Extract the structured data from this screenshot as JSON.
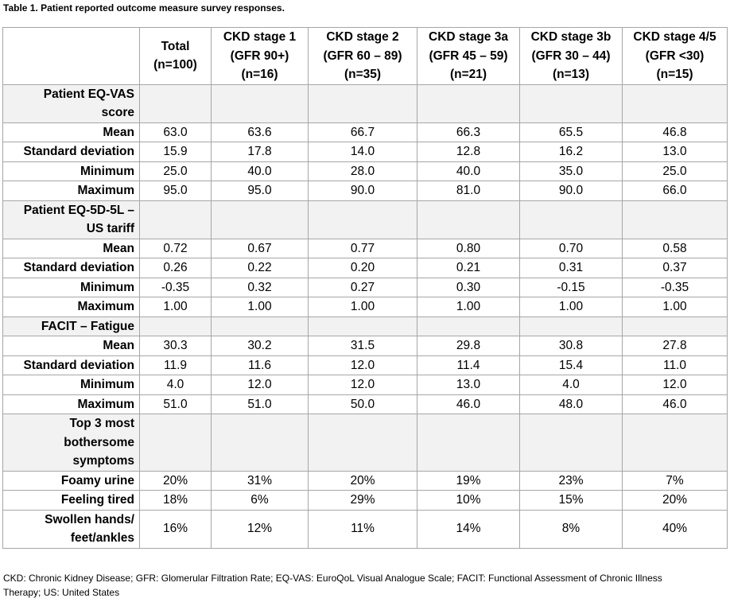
{
  "caption": "Table 1. Patient reported outcome measure survey responses.",
  "columns": [
    [
      "Total",
      "(n=100)"
    ],
    [
      "CKD stage 1",
      "(GFR 90+)",
      "(n=16)"
    ],
    [
      "CKD stage 2",
      "(GFR 60 – 89)",
      "(n=35)"
    ],
    [
      "CKD stage 3a",
      "(GFR 45 – 59)",
      "(n=21)"
    ],
    [
      "CKD stage 3b",
      "(GFR 30 – 44)",
      "(n=13)"
    ],
    [
      "CKD stage 4/5",
      "(GFR <30)",
      "(n=15)"
    ]
  ],
  "rows": [
    {
      "type": "section",
      "lines": [
        "Patient EQ-VAS",
        "score"
      ]
    },
    {
      "type": "data",
      "lines": [
        "Mean"
      ],
      "values": [
        "63.0",
        "63.6",
        "66.7",
        "66.3",
        "65.5",
        "46.8"
      ]
    },
    {
      "type": "data",
      "lines": [
        "Standard deviation"
      ],
      "values": [
        "15.9",
        "17.8",
        "14.0",
        "12.8",
        "16.2",
        "13.0"
      ]
    },
    {
      "type": "data",
      "lines": [
        "Minimum"
      ],
      "values": [
        "25.0",
        "40.0",
        "28.0",
        "40.0",
        "35.0",
        "25.0"
      ]
    },
    {
      "type": "data",
      "lines": [
        "Maximum"
      ],
      "values": [
        "95.0",
        "95.0",
        "90.0",
        "81.0",
        "90.0",
        "66.0"
      ]
    },
    {
      "type": "section",
      "lines": [
        "Patient EQ-5D-5L –",
        "US tariff"
      ]
    },
    {
      "type": "data",
      "lines": [
        "Mean"
      ],
      "values": [
        "0.72",
        "0.67",
        "0.77",
        "0.80",
        "0.70",
        "0.58"
      ]
    },
    {
      "type": "data",
      "lines": [
        "Standard deviation"
      ],
      "values": [
        "0.26",
        "0.22",
        "0.20",
        "0.21",
        "0.31",
        "0.37"
      ]
    },
    {
      "type": "data",
      "lines": [
        "Minimum"
      ],
      "values": [
        "-0.35",
        "0.32",
        "0.27",
        "0.30",
        "-0.15",
        "-0.35"
      ]
    },
    {
      "type": "data",
      "lines": [
        "Maximum"
      ],
      "values": [
        "1.00",
        "1.00",
        "1.00",
        "1.00",
        "1.00",
        "1.00"
      ]
    },
    {
      "type": "section",
      "lines": [
        "FACIT – Fatigue"
      ]
    },
    {
      "type": "data",
      "lines": [
        "Mean"
      ],
      "values": [
        "30.3",
        "30.2",
        "31.5",
        "29.8",
        "30.8",
        "27.8"
      ]
    },
    {
      "type": "data",
      "lines": [
        "Standard deviation"
      ],
      "values": [
        "11.9",
        "11.6",
        "12.0",
        "11.4",
        "15.4",
        "11.0"
      ]
    },
    {
      "type": "data",
      "lines": [
        "Minimum"
      ],
      "values": [
        "4.0",
        "12.0",
        "12.0",
        "13.0",
        "4.0",
        "12.0"
      ]
    },
    {
      "type": "data",
      "lines": [
        "Maximum"
      ],
      "values": [
        "51.0",
        "51.0",
        "50.0",
        "46.0",
        "48.0",
        "46.0"
      ]
    },
    {
      "type": "section",
      "lines": [
        "Top 3 most",
        "bothersome",
        "symptoms"
      ]
    },
    {
      "type": "data",
      "lines": [
        "Foamy urine"
      ],
      "values": [
        "20%",
        "31%",
        "20%",
        "19%",
        "23%",
        "7%"
      ]
    },
    {
      "type": "data",
      "lines": [
        "Feeling tired"
      ],
      "values": [
        "18%",
        "6%",
        "29%",
        "10%",
        "15%",
        "20%"
      ]
    },
    {
      "type": "data",
      "lines": [
        "Swollen hands/",
        "feet/ankles"
      ],
      "values": [
        "16%",
        "12%",
        "11%",
        "14%",
        "8%",
        "40%"
      ]
    }
  ],
  "footnote": "CKD: Chronic Kidney Disease; GFR: Glomerular Filtration Rate; EQ-VAS: EuroQoL Visual Analogue Scale; FACIT: Functional Assessment of Chronic Illness Therapy; US: United States"
}
